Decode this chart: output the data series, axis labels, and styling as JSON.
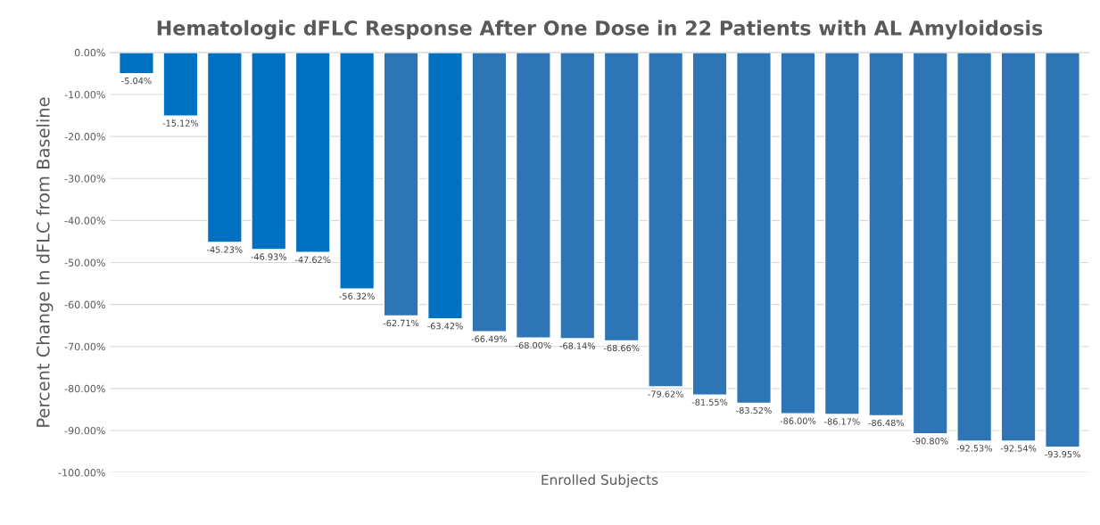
{
  "chart_data": {
    "type": "bar",
    "title": "Hematologic dFLC Response After One Dose in 22 Patients with AL Amyloidosis",
    "xlabel": "Enrolled Subjects",
    "ylabel": "Percent Change In dFLC from Baseline",
    "categories": [
      null,
      null,
      null,
      null,
      null,
      null,
      null,
      null,
      null,
      null,
      null,
      null,
      null,
      null,
      null,
      null,
      null,
      null,
      null,
      null,
      null,
      null
    ],
    "values": [
      -5.04,
      -15.12,
      -45.23,
      -46.93,
      -47.62,
      -56.32,
      -62.71,
      -63.42,
      -66.49,
      -68.0,
      -68.14,
      -68.66,
      -79.62,
      -81.55,
      -83.52,
      -86.0,
      -86.17,
      -86.48,
      -90.8,
      -92.53,
      -92.54,
      -93.95
    ],
    "colors": [
      "#0070c0",
      "#0070c0",
      "#0070c0",
      "#0070c0",
      "#0070c0",
      "#0070c0",
      "#2e75b6",
      "#0070c0",
      "#2e75b6",
      "#2e75b6",
      "#2e75b6",
      "#2e75b6",
      "#2e75b6",
      "#2e75b6",
      "#2e75b6",
      "#2e75b6",
      "#2e75b6",
      "#2e75b6",
      "#2e75b6",
      "#2e75b6",
      "#2e75b6",
      "#2e75b6"
    ],
    "value_labels": [
      "-5.04%",
      "-15.12%",
      "-45.23%",
      "-46.93%",
      "-47.62%",
      "-56.32%",
      "-62.71%",
      "-63.42%",
      "-66.49%",
      "-68.00%",
      "-68.14%",
      "-68.66%",
      "-79.62%",
      "-81.55%",
      "-83.52%",
      "-86.00%",
      "-86.17%",
      "-86.48%",
      "-90.80%",
      "-92.53%",
      "-92.54%",
      "-93.95%"
    ],
    "ylim": [
      -100,
      0
    ],
    "yticks": [
      {
        "value": 0,
        "label": "0.00%"
      },
      {
        "value": -10,
        "label": "-10.00%"
      },
      {
        "value": -20,
        "label": "-20.00%"
      },
      {
        "value": -30,
        "label": "-30.00%"
      },
      {
        "value": -40,
        "label": "-40.00%"
      },
      {
        "value": -50,
        "label": "-50.00%"
      },
      {
        "value": -60,
        "label": "-60.00%"
      },
      {
        "value": -70,
        "label": "-70.00%"
      },
      {
        "value": -80,
        "label": "-80.00%"
      },
      {
        "value": -90,
        "label": "-90.00%"
      },
      {
        "value": -100,
        "label": "-100.00%"
      }
    ],
    "grid": "y"
  }
}
